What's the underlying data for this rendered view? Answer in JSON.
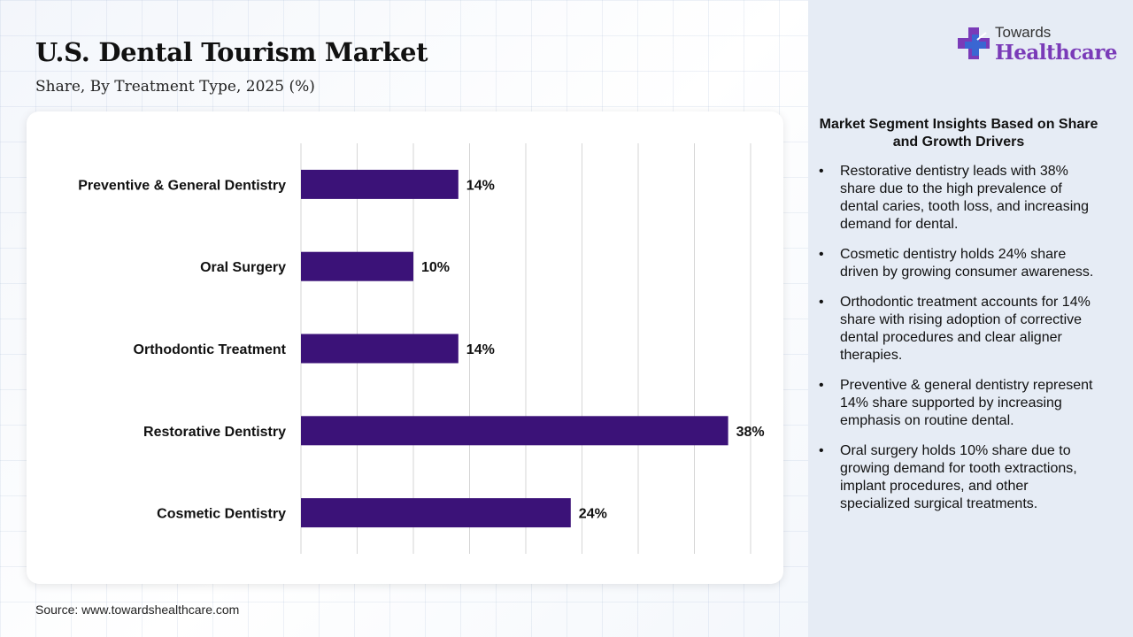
{
  "header": {
    "title": "U.S. Dental Tourism Market",
    "subtitle": "Share, By Treatment Type, 2025 (%)"
  },
  "logo": {
    "top_text": "Towards",
    "main_text": "Healthcare",
    "icon": "medical-cross-icon",
    "colors": {
      "purple": "#7a3bb8",
      "blue": "#2f6fd6"
    }
  },
  "source": "Source: www.towardshealthcare.com",
  "colors": {
    "bar": "#3b1278",
    "grid": "#d6d6d6",
    "panel_bg": "#e6ecf5"
  },
  "chart_data": {
    "type": "bar",
    "orientation": "horizontal",
    "categories": [
      "Preventive & General Dentistry",
      "Oral Surgery",
      "Orthodontic Treatment",
      "Restorative Dentistry",
      "Cosmetic Dentistry"
    ],
    "values": [
      14,
      10,
      14,
      38,
      24
    ],
    "data_labels": [
      "14%",
      "10%",
      "14%",
      "38%",
      "24%"
    ],
    "xlim": [
      0,
      40
    ],
    "grid": true,
    "legend": "none"
  },
  "insights": {
    "heading": "Market Segment Insights Based on Share and Growth Drivers",
    "items": [
      "Restorative dentistry leads with 38% share due to the high prevalence of dental caries, tooth loss, and increasing demand for dental.",
      "Cosmetic dentistry holds 24% share driven by growing consumer awareness.",
      "Orthodontic treatment accounts for 14% share with rising adoption of corrective dental procedures and clear aligner therapies.",
      "Preventive & general dentistry represent 14% share supported by increasing emphasis on routine dental.",
      "Oral surgery holds 10% share due to growing demand for tooth extractions, implant procedures, and other specialized surgical treatments."
    ]
  }
}
